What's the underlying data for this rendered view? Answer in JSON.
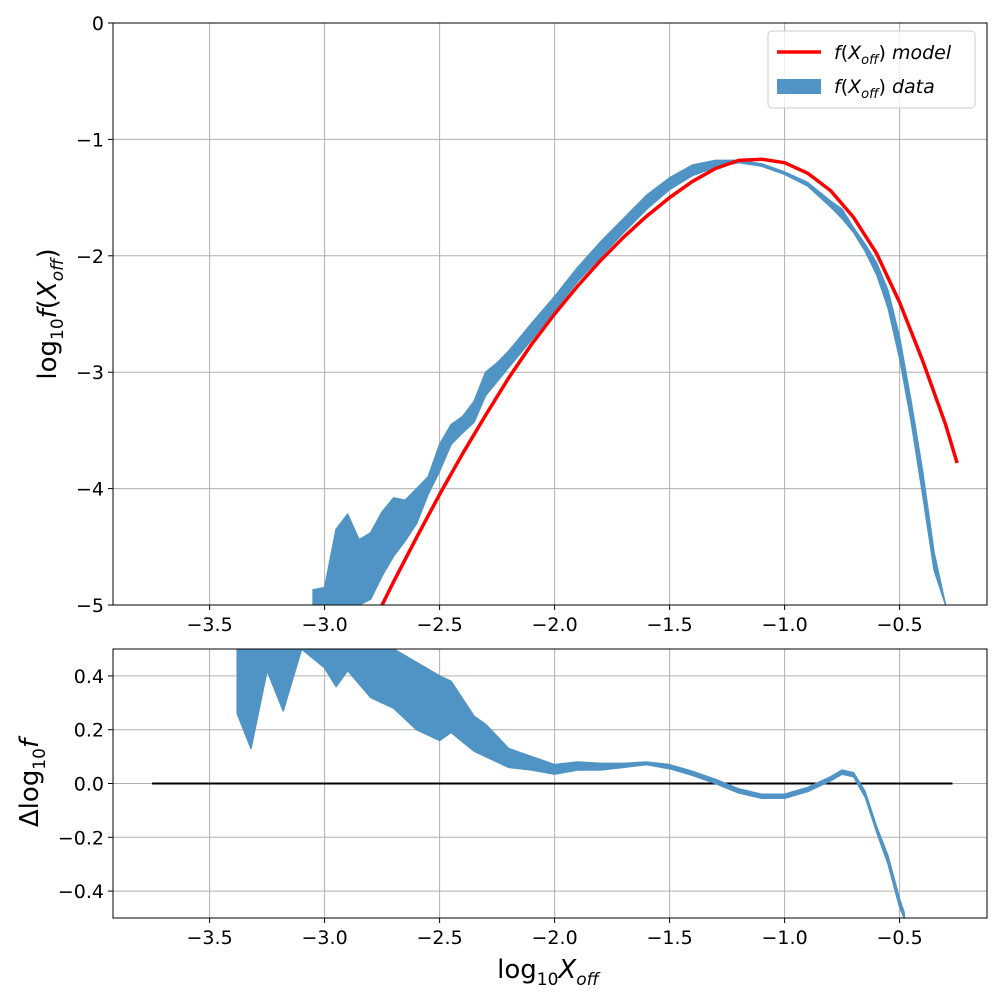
{
  "chart_data": [
    {
      "type": "line",
      "panel": "top",
      "xlim": [
        -3.92,
        -0.12
      ],
      "ylim": [
        -5,
        0
      ],
      "xticks": [
        -3.5,
        -3.0,
        -2.5,
        -2.0,
        -1.5,
        -1.0,
        -0.5
      ],
      "yticks": [
        0,
        -1,
        -2,
        -3,
        -4,
        -5
      ],
      "xtick_labels": [
        "−3.5",
        "−3.0",
        "−2.5",
        "−2.0",
        "−1.5",
        "−1.0",
        "−0.5"
      ],
      "ytick_labels": [
        "0",
        "−1",
        "−2",
        "−3",
        "−4",
        "−5"
      ],
      "ylabel": {
        "prefix": "log",
        "sub": "10",
        "var": "f",
        "open": "(",
        "x": "X",
        "xsub": "off",
        "close": ")"
      },
      "grid": true,
      "legend": {
        "position": "upper-right",
        "entries": [
          {
            "label": {
              "f": "f",
              "open": "(",
              "x": "X",
              "sub": "off",
              "close": ")",
              "rest": " model"
            },
            "color": "#ff0000",
            "kind": "line"
          },
          {
            "label": {
              "f": "f",
              "open": "(",
              "x": "X",
              "sub": "off",
              "close": ")",
              "rest": " data"
            },
            "color": "#4f94c4",
            "kind": "band"
          }
        ]
      },
      "series": [
        {
          "name": "model",
          "color": "#ff0000",
          "x": [
            -2.75,
            -2.7,
            -2.6,
            -2.5,
            -2.4,
            -2.3,
            -2.2,
            -2.1,
            -2.0,
            -1.9,
            -1.8,
            -1.7,
            -1.6,
            -1.5,
            -1.4,
            -1.3,
            -1.2,
            -1.1,
            -1.0,
            -0.9,
            -0.8,
            -0.7,
            -0.6,
            -0.5,
            -0.4,
            -0.3,
            -0.25
          ],
          "y": [
            -5.0,
            -4.8,
            -4.42,
            -4.05,
            -3.7,
            -3.37,
            -3.05,
            -2.76,
            -2.5,
            -2.26,
            -2.04,
            -1.84,
            -1.66,
            -1.5,
            -1.36,
            -1.25,
            -1.18,
            -1.17,
            -1.2,
            -1.29,
            -1.44,
            -1.67,
            -1.98,
            -2.4,
            -2.9,
            -3.45,
            -3.78
          ]
        },
        {
          "name": "data",
          "color": "#4f94c4",
          "x": [
            -3.05,
            -3.0,
            -2.95,
            -2.9,
            -2.85,
            -2.8,
            -2.75,
            -2.7,
            -2.65,
            -2.6,
            -2.55,
            -2.5,
            -2.45,
            -2.4,
            -2.35,
            -2.3,
            -2.25,
            -2.2,
            -2.1,
            -2.0,
            -1.9,
            -1.8,
            -1.7,
            -1.6,
            -1.5,
            -1.4,
            -1.3,
            -1.2,
            -1.1,
            -1.0,
            -0.9,
            -0.8,
            -0.75,
            -0.7,
            -0.65,
            -0.6,
            -0.55,
            -0.5,
            -0.45,
            -0.4,
            -0.35,
            -0.3
          ],
          "y_low": [
            -5.0,
            -5.0,
            -5.0,
            -5.0,
            -5.0,
            -4.95,
            -4.75,
            -4.58,
            -4.45,
            -4.3,
            -4.05,
            -3.85,
            -3.62,
            -3.52,
            -3.43,
            -3.2,
            -3.08,
            -2.96,
            -2.72,
            -2.47,
            -2.22,
            -2.01,
            -1.8,
            -1.6,
            -1.43,
            -1.31,
            -1.24,
            -1.2,
            -1.23,
            -1.3,
            -1.4,
            -1.58,
            -1.68,
            -1.8,
            -1.96,
            -2.16,
            -2.45,
            -2.88,
            -3.42,
            -4.05,
            -4.7,
            -5.0
          ],
          "y_high": [
            -4.87,
            -4.85,
            -4.35,
            -4.22,
            -4.44,
            -4.38,
            -4.2,
            -4.08,
            -4.1,
            -4.0,
            -3.9,
            -3.62,
            -3.45,
            -3.38,
            -3.25,
            -3.0,
            -2.92,
            -2.82,
            -2.58,
            -2.35,
            -2.1,
            -1.88,
            -1.68,
            -1.48,
            -1.33,
            -1.22,
            -1.18,
            -1.18,
            -1.21,
            -1.28,
            -1.37,
            -1.53,
            -1.6,
            -1.76,
            -1.9,
            -2.06,
            -2.3,
            -2.7,
            -3.25,
            -3.85,
            -4.55,
            -5.0
          ]
        }
      ]
    },
    {
      "type": "line",
      "panel": "bottom",
      "xlim": [
        -3.92,
        -0.12
      ],
      "ylim": [
        -0.5,
        0.5
      ],
      "xticks": [
        -3.5,
        -3.0,
        -2.5,
        -2.0,
        -1.5,
        -1.0,
        -0.5
      ],
      "yticks": [
        0.4,
        0.2,
        0.0,
        -0.2,
        -0.4
      ],
      "xtick_labels": [
        "−3.5",
        "−3.0",
        "−2.5",
        "−2.0",
        "−1.5",
        "−1.0",
        "−0.5"
      ],
      "ytick_labels": [
        "0.4",
        "0.2",
        "0.0",
        "−0.2",
        "−0.4"
      ],
      "xlabel": {
        "prefix": "log",
        "sub": "10",
        "var": "X",
        "vsub": "off"
      },
      "ylabel": {
        "delta": "Δ",
        "prefix": "log",
        "sub": "10",
        "var": "f"
      },
      "grid": true,
      "reference_line": {
        "y": 0.0,
        "x": [
          -3.75,
          -0.27
        ],
        "color": "#000000"
      },
      "series": [
        {
          "name": "residual",
          "color": "#4f94c4",
          "x": [
            -3.38,
            -3.32,
            -3.25,
            -3.18,
            -3.1,
            -3.0,
            -2.95,
            -2.9,
            -2.8,
            -2.7,
            -2.6,
            -2.5,
            -2.45,
            -2.35,
            -2.3,
            -2.2,
            -2.1,
            -2.0,
            -1.9,
            -1.8,
            -1.7,
            -1.6,
            -1.5,
            -1.4,
            -1.3,
            -1.2,
            -1.1,
            -1.0,
            -0.9,
            -0.8,
            -0.75,
            -0.7,
            -0.65,
            -0.6,
            -0.55,
            -0.5,
            -0.48
          ],
          "y_low": [
            0.26,
            0.13,
            0.42,
            0.27,
            0.5,
            0.43,
            0.36,
            0.42,
            0.32,
            0.28,
            0.2,
            0.16,
            0.19,
            0.12,
            0.1,
            0.06,
            0.05,
            0.035,
            0.05,
            0.05,
            0.06,
            0.07,
            0.055,
            0.03,
            0.0,
            -0.035,
            -0.055,
            -0.055,
            -0.03,
            0.01,
            0.035,
            0.025,
            -0.05,
            -0.18,
            -0.3,
            -0.46,
            -0.5
          ],
          "y_high": [
            0.5,
            0.5,
            0.5,
            0.5,
            0.5,
            0.5,
            0.5,
            0.5,
            0.5,
            0.5,
            0.45,
            0.4,
            0.38,
            0.25,
            0.22,
            0.13,
            0.1,
            0.07,
            0.08,
            0.075,
            0.075,
            0.08,
            0.07,
            0.045,
            0.015,
            -0.02,
            -0.04,
            -0.04,
            -0.015,
            0.025,
            0.05,
            0.04,
            -0.03,
            -0.16,
            -0.27,
            -0.43,
            -0.48
          ]
        }
      ]
    }
  ]
}
